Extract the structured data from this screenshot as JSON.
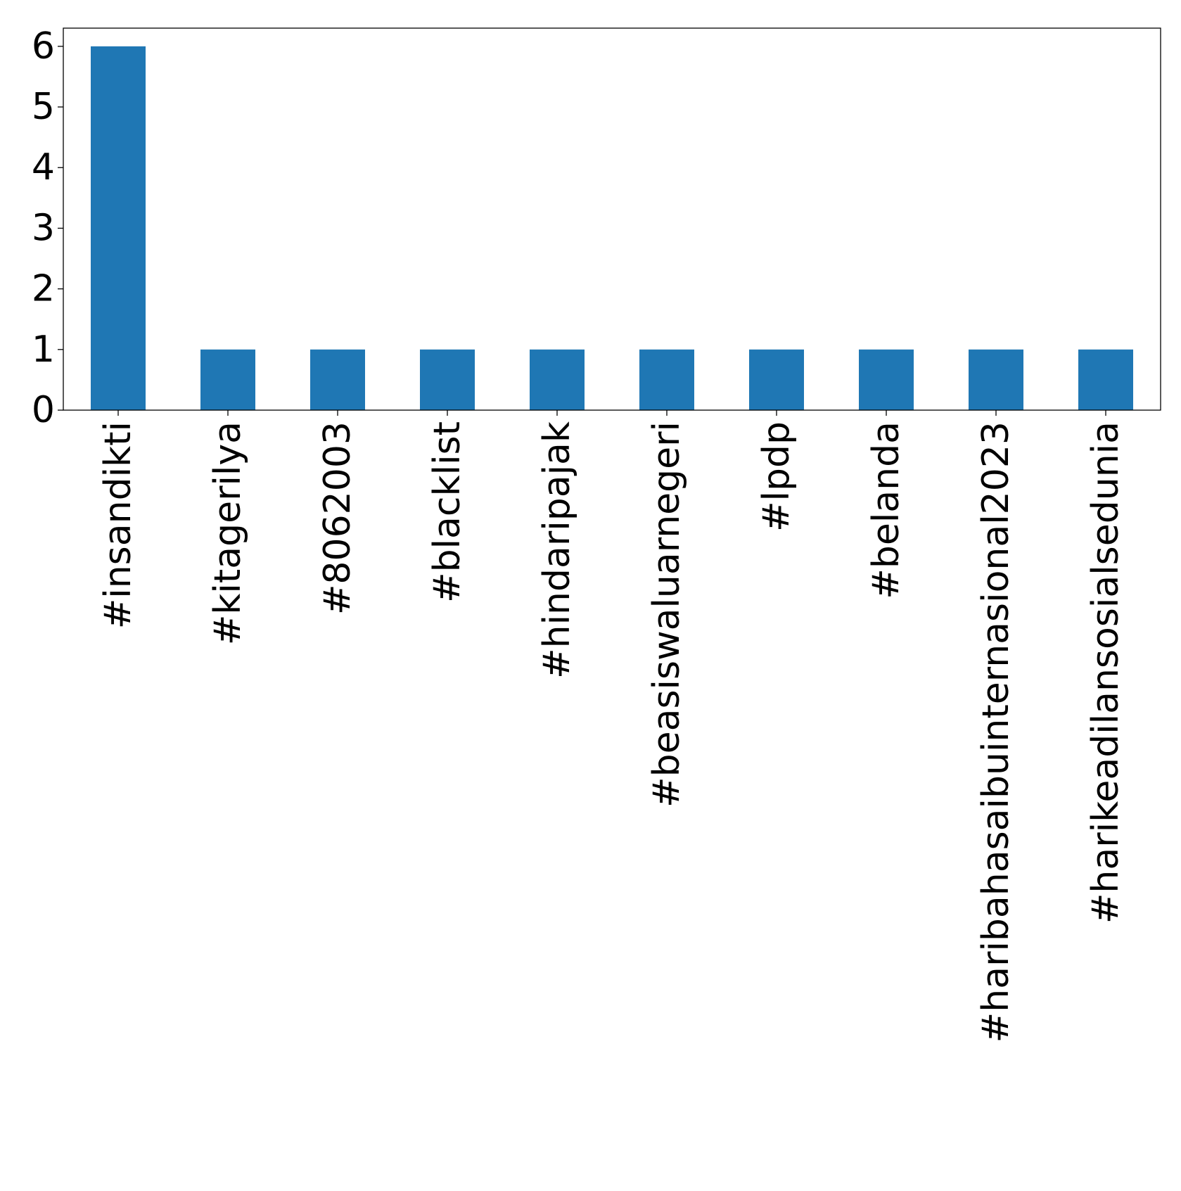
{
  "chart_data": {
    "type": "bar",
    "categories": [
      "#insandikti",
      "#kitagerilya",
      "#8062003",
      "#blacklist",
      "#hindaripajak",
      "#beasiswaluarnegeri",
      "#lpdp",
      "#belanda",
      "#haribahasaibuinternasional2023",
      "#harikeadilansosialsedunia"
    ],
    "values": [
      6,
      1,
      1,
      1,
      1,
      1,
      1,
      1,
      1,
      1
    ],
    "title": "",
    "xlabel": "",
    "ylabel": "",
    "ylim": [
      0,
      6.3
    ],
    "yticks": [
      "0",
      "1",
      "2",
      "3",
      "4",
      "5",
      "6"
    ],
    "grid": false,
    "bar_color": "#1f77b4"
  }
}
